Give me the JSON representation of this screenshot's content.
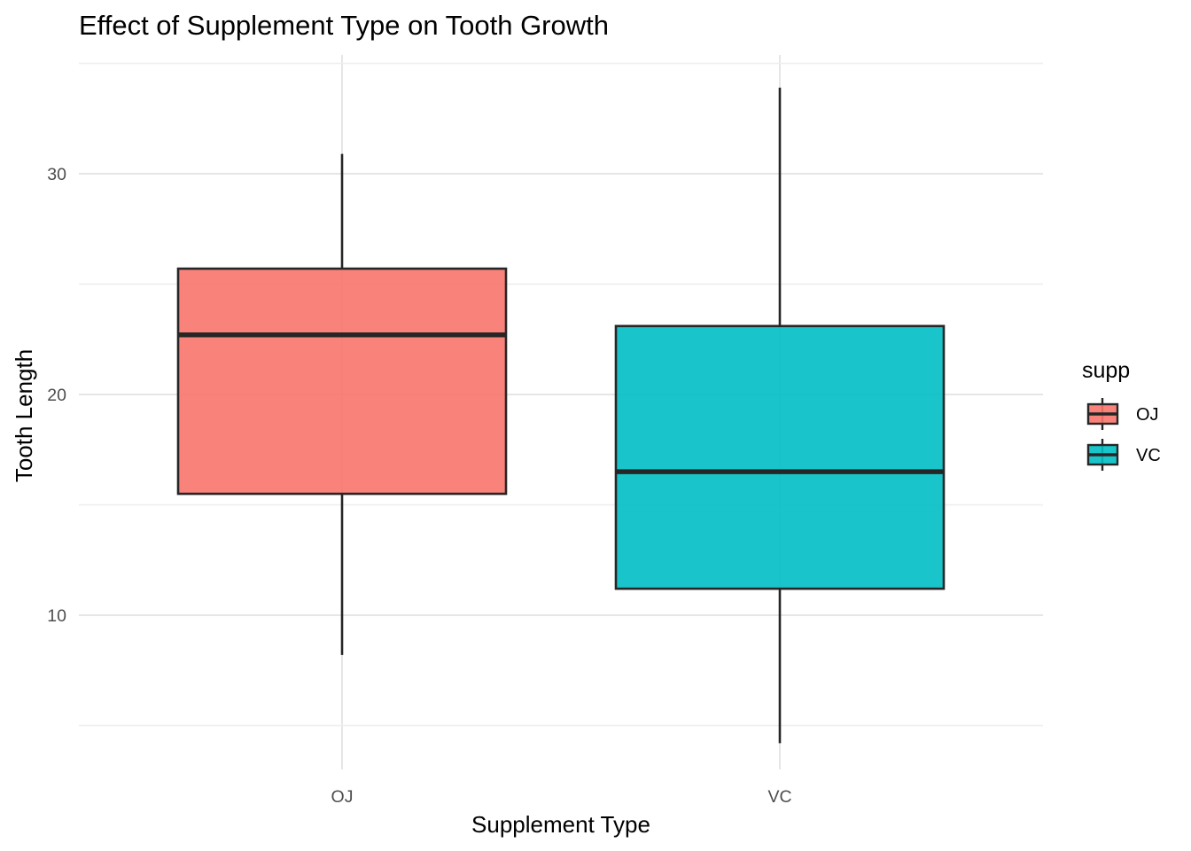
{
  "chart_data": {
    "type": "boxplot",
    "title": "Effect of Supplement Type on Tooth Growth",
    "xlabel": "Supplement Type",
    "ylabel": "Tooth Length",
    "ylim": [
      4.2,
      34.5
    ],
    "yticks": [
      10,
      20,
      30
    ],
    "grid": true,
    "legend": {
      "title": "supp",
      "position": "right",
      "entries": [
        "OJ",
        "VC"
      ]
    },
    "categories": [
      "OJ",
      "VC"
    ],
    "series": [
      {
        "name": "OJ",
        "color": "#F8766D",
        "min": 8.2,
        "q1": 15.5,
        "median": 22.7,
        "q3": 25.7,
        "max": 30.9
      },
      {
        "name": "VC",
        "color": "#00BFC4",
        "min": 4.2,
        "q1": 11.2,
        "median": 16.5,
        "q3": 23.1,
        "max": 33.9
      }
    ]
  }
}
